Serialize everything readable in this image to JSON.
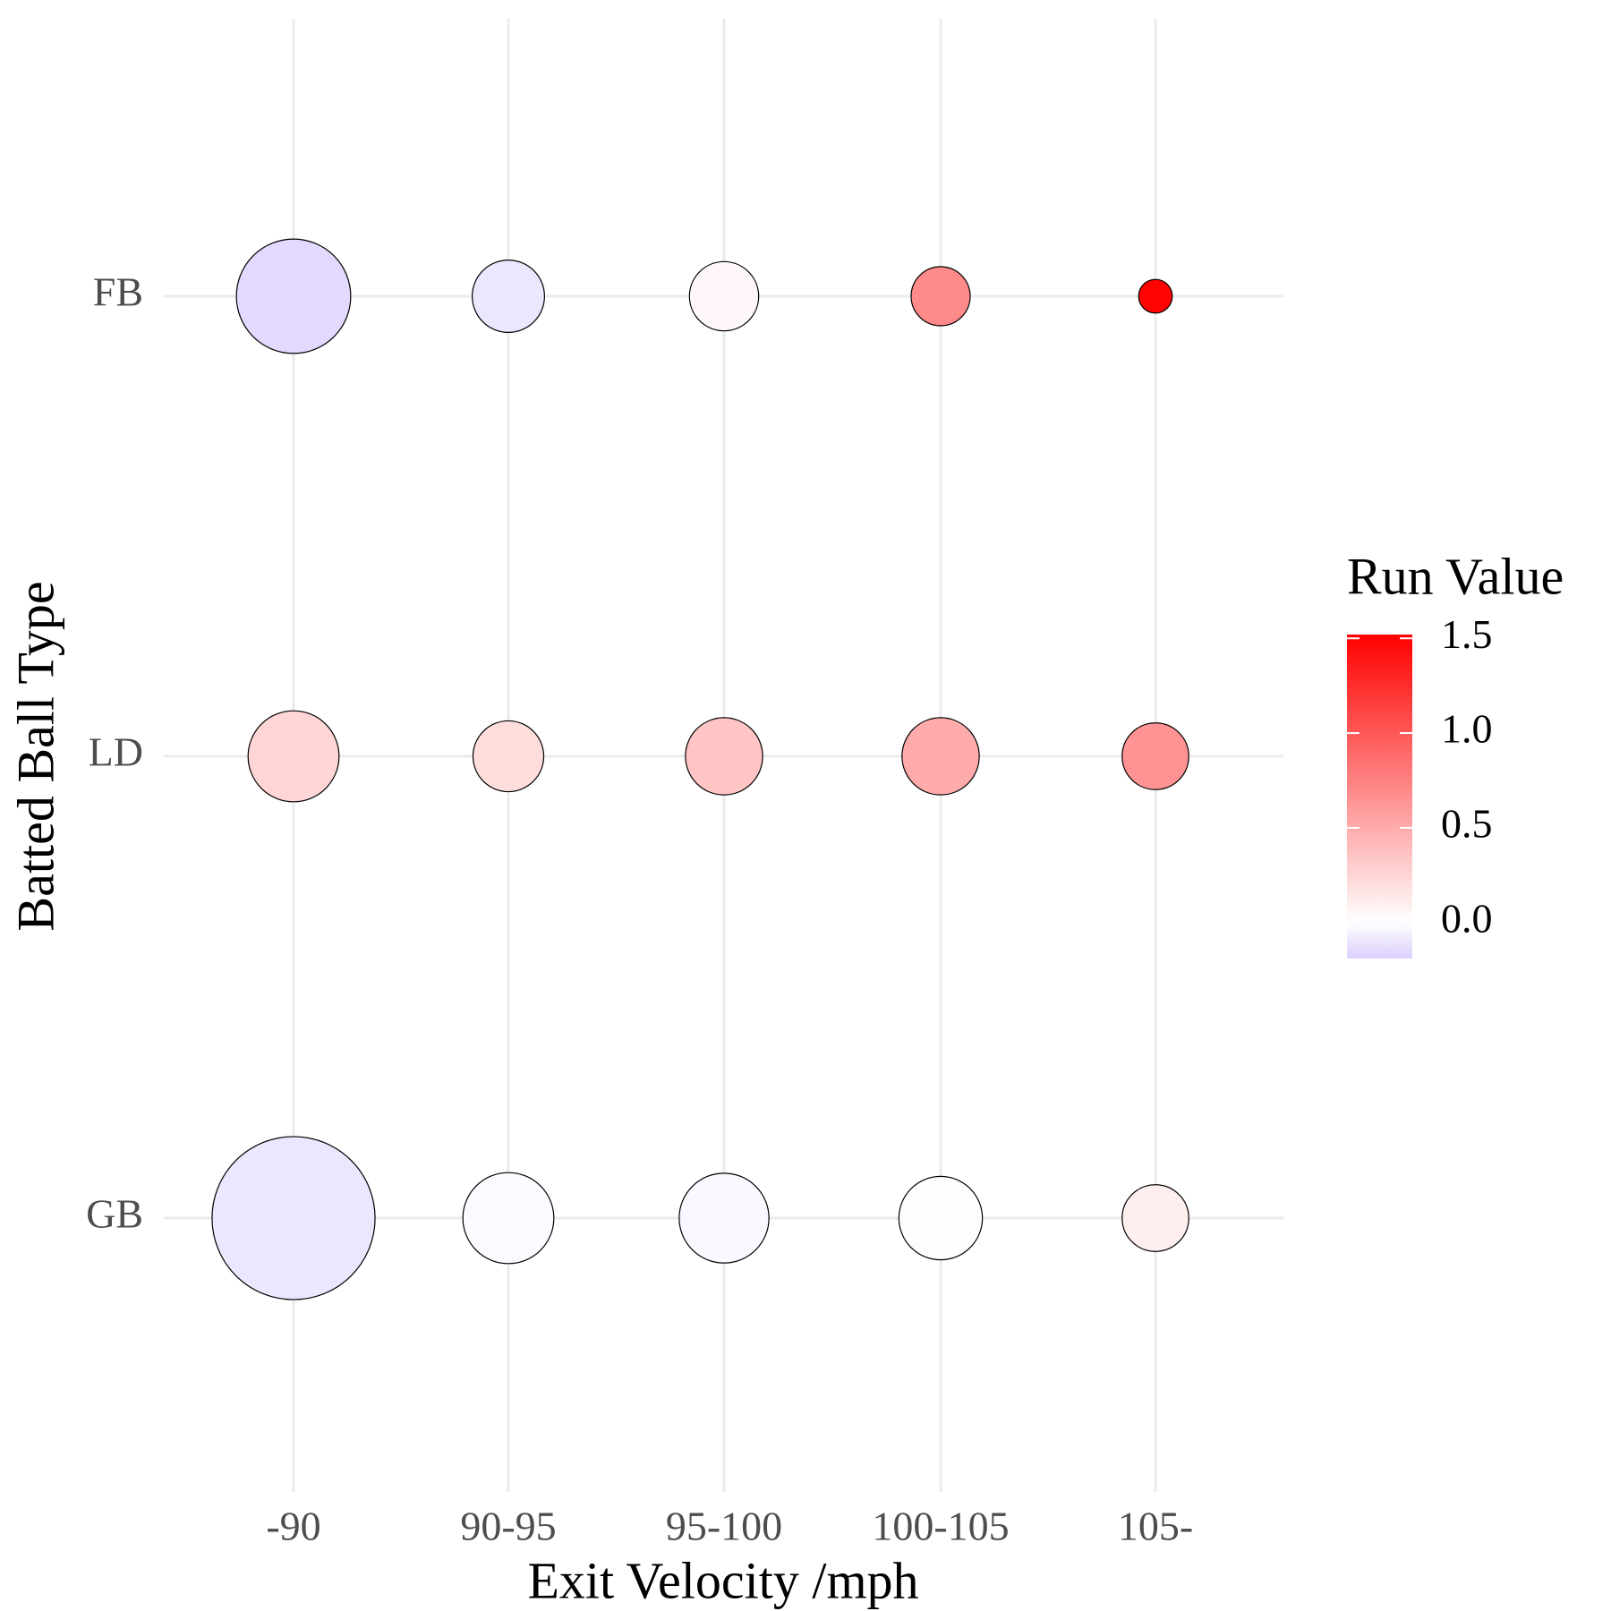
{
  "chart_data": {
    "type": "bubble",
    "x_label": "Exit Velocity /mph",
    "y_label": "Batted Ball Type",
    "categories": [
      "-90",
      "90-95",
      "95-100",
      "100-105",
      "105-"
    ],
    "y_categories": [
      "FB",
      "LD",
      "GB"
    ],
    "color_values": [
      [
        -0.15,
        -0.1,
        0.05,
        0.7,
        1.5
      ],
      [
        0.25,
        0.2,
        0.35,
        0.5,
        0.65
      ],
      [
        -0.1,
        -0.02,
        -0.03,
        0.02,
        0.1
      ]
    ],
    "sizes": [
      [
        30,
        12,
        11,
        8,
        2.6
      ],
      [
        19,
        11.5,
        13.7,
        13.7,
        10.2
      ],
      [
        61,
        19,
        18.5,
        16,
        10.2
      ]
    ],
    "grid": true,
    "colorbar": {
      "title": "Run Value",
      "lim": [
        -0.19,
        1.52
      ],
      "ticks": [
        {
          "value": 0,
          "label": "0.0"
        },
        {
          "value": 0.5,
          "label": "0.5"
        },
        {
          "value": 1,
          "label": "1.0"
        },
        {
          "value": 1.5,
          "label": "1.5"
        }
      ],
      "low_color": "#dccfff",
      "mid_color": "#ffffff",
      "high_color": "#ff0000",
      "midpoint": 0
    }
  }
}
